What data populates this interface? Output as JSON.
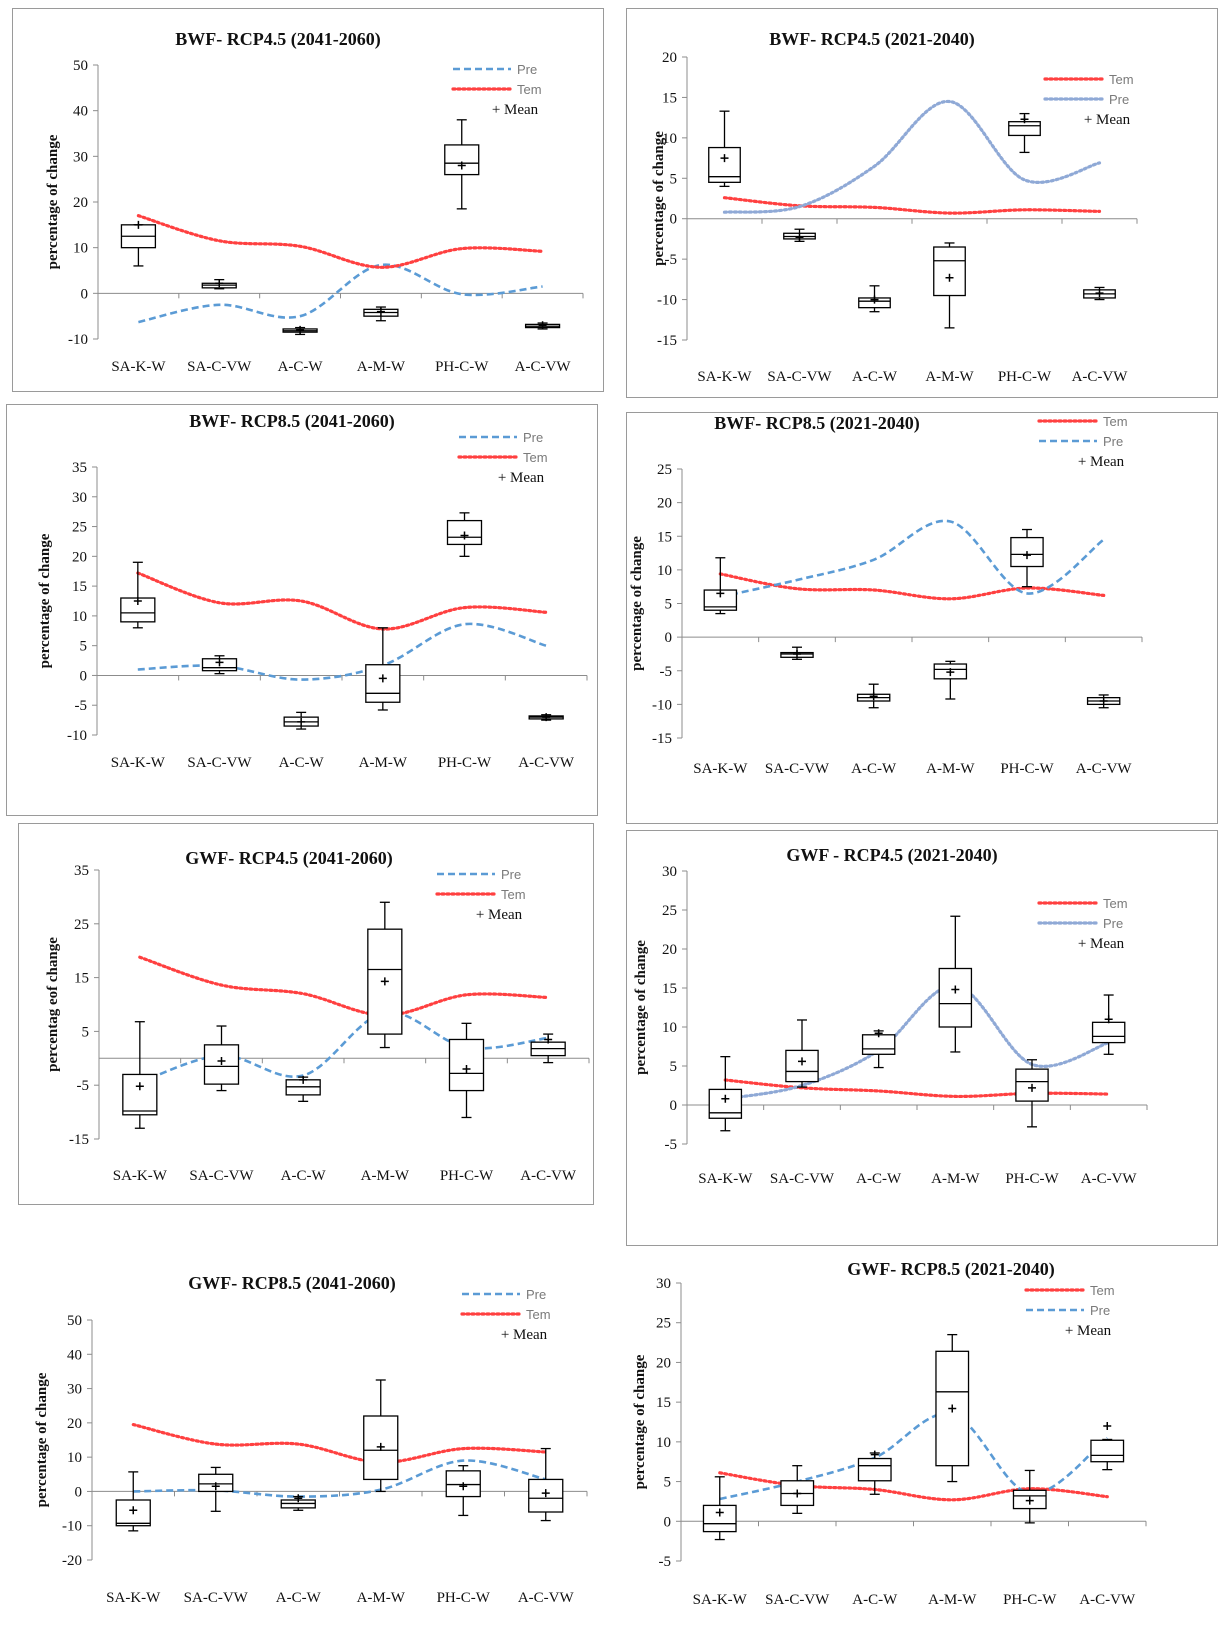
{
  "chart_data": [
    {
      "id": "p1",
      "type": "box",
      "title": "BWF- RCP4.5 (2041-2060)",
      "ylabel": "percentage of change",
      "ylim": [
        -10,
        50
      ],
      "yticks": [
        -10,
        0,
        10,
        20,
        30,
        40,
        50
      ],
      "categories": [
        "SA-K-W",
        "SA-C-VW",
        "A-C-W",
        "A-M-W",
        "PH-C-W",
        "A-C-VW"
      ],
      "boxes": [
        {
          "min": 6,
          "q1": 10,
          "median": 12.5,
          "q3": 15,
          "max": 15,
          "mean": 15
        },
        {
          "min": 1,
          "q1": 1.2,
          "median": 1.8,
          "q3": 2.2,
          "max": 3,
          "mean": 2.2
        },
        {
          "min": -9,
          "q1": -8.5,
          "median": -8.2,
          "q3": -7.8,
          "max": -7.5,
          "mean": -8
        },
        {
          "min": -6,
          "q1": -5,
          "median": -4.2,
          "q3": -3.5,
          "max": -3,
          "mean": -4
        },
        {
          "min": 18.5,
          "q1": 26,
          "median": 28.5,
          "q3": 32.5,
          "max": 38,
          "mean": 28
        },
        {
          "min": -7.8,
          "q1": -7.5,
          "median": -7.2,
          "q3": -6.8,
          "max": -6.5,
          "mean": -7
        }
      ],
      "lines": [
        {
          "name": "Pre",
          "style": "dashed",
          "color": "#5b9bd5",
          "values": [
            -6.3,
            -2.5,
            -5,
            6.2,
            -0.2,
            1.5
          ]
        },
        {
          "name": "Tem",
          "style": "dotted",
          "color": "#ff4040",
          "values": [
            17,
            11.5,
            10.3,
            5.7,
            9.8,
            9.2
          ]
        }
      ],
      "legend_order": [
        "Pre",
        "Tem",
        "Mean"
      ],
      "mean_label": "+ Mean"
    },
    {
      "id": "p2",
      "type": "box",
      "title": "BWF- RCP4.5 (2021-2040)",
      "ylabel": "percentage of change",
      "ylim": [
        -15,
        20
      ],
      "yticks": [
        -15,
        -10,
        -5,
        0,
        5,
        10,
        15,
        20
      ],
      "categories": [
        "SA-K-W",
        "SA-C-VW",
        "A-C-W",
        "A-M-W",
        "PH-C-W",
        "A-C-VW"
      ],
      "boxes": [
        {
          "min": 4,
          "q1": 4.5,
          "median": 5.2,
          "q3": 8.8,
          "max": 13.3,
          "mean": 7.5
        },
        {
          "min": -2.8,
          "q1": -2.5,
          "median": -2.2,
          "q3": -1.8,
          "max": -1.3,
          "mean": -2.3
        },
        {
          "min": -11.5,
          "q1": -11,
          "median": -10.2,
          "q3": -9.8,
          "max": -8.3,
          "mean": -10
        },
        {
          "min": -13.5,
          "q1": -9.5,
          "median": -5.2,
          "q3": -3.5,
          "max": -3,
          "mean": -7.3
        },
        {
          "min": 8.2,
          "q1": 10.3,
          "median": 11.5,
          "q3": 12,
          "max": 13,
          "mean": 12.3
        },
        {
          "min": -10,
          "q1": -9.8,
          "median": -9.3,
          "q3": -8.8,
          "max": -8.5,
          "mean": -9.2
        }
      ],
      "lines": [
        {
          "name": "Tem",
          "style": "dotted",
          "color": "#ff4040",
          "values": [
            2.6,
            1.6,
            1.4,
            0.7,
            1.1,
            0.9
          ]
        },
        {
          "name": "Pre",
          "style": "dotted",
          "color": "#8fa9d6",
          "values": [
            0.8,
            1.5,
            6.5,
            14.5,
            4.8,
            6.9
          ]
        }
      ],
      "legend_order": [
        "Tem",
        "Pre",
        "Mean"
      ],
      "mean_label": "+ Mean"
    },
    {
      "id": "p3",
      "type": "box",
      "title": "BWF- RCP8.5 (2041-2060)",
      "ylabel": "percentage of change",
      "ylim": [
        -10,
        35
      ],
      "yticks": [
        -10,
        -5,
        0,
        5,
        10,
        15,
        20,
        25,
        30,
        35
      ],
      "categories": [
        "SA-K-W",
        "SA-C-VW",
        "A-C-W",
        "A-M-W",
        "PH-C-W",
        "A-C-VW"
      ],
      "boxes": [
        {
          "min": 8,
          "q1": 9,
          "median": 10.5,
          "q3": 13,
          "max": 19,
          "mean": 12.5
        },
        {
          "min": 0.3,
          "q1": 0.8,
          "median": 1.3,
          "q3": 2.8,
          "max": 3.3,
          "mean": 2.2
        },
        {
          "min": -9,
          "q1": -8.5,
          "median": -7.8,
          "q3": -7,
          "max": -6.2,
          "mean": -7.8
        },
        {
          "min": -5.8,
          "q1": -4.5,
          "median": -3,
          "q3": 1.8,
          "max": 8,
          "mean": -0.5
        },
        {
          "min": 20,
          "q1": 22,
          "median": 23.2,
          "q3": 26,
          "max": 27.3,
          "mean": 23.5
        },
        {
          "min": -7.5,
          "q1": -7.3,
          "median": -7,
          "q3": -6.8,
          "max": -6.6,
          "mean": -7
        }
      ],
      "lines": [
        {
          "name": "Pre",
          "style": "dashed",
          "color": "#5b9bd5",
          "values": [
            1,
            1.6,
            -0.7,
            1.7,
            8.6,
            5
          ]
        },
        {
          "name": "Tem",
          "style": "dotted",
          "color": "#ff4040",
          "values": [
            17.2,
            12.2,
            12.5,
            7.8,
            11.4,
            10.6
          ]
        }
      ],
      "legend_order": [
        "Pre",
        "Tem",
        "Mean"
      ],
      "mean_label": "+ Mean"
    },
    {
      "id": "p4",
      "type": "box",
      "title": "BWF- RCP8.5 (2021-2040)",
      "ylabel": "percentage of change",
      "ylim": [
        -15,
        25
      ],
      "yticks": [
        -15,
        -10,
        -5,
        0,
        5,
        10,
        15,
        20,
        25
      ],
      "categories": [
        "SA-K-W",
        "SA-C-VW",
        "A-C-W",
        "A-M-W",
        "PH-C-W",
        "A-C-VW"
      ],
      "boxes": [
        {
          "min": 3.5,
          "q1": 4,
          "median": 4.5,
          "q3": 7,
          "max": 11.8,
          "mean": 6.5
        },
        {
          "min": -3.3,
          "q1": -3,
          "median": -2.5,
          "q3": -2.3,
          "max": -1.5,
          "mean": -2.5
        },
        {
          "min": -10.5,
          "q1": -9.5,
          "median": -9,
          "q3": -8.5,
          "max": -7,
          "mean": -8.8
        },
        {
          "min": -9.2,
          "q1": -6.2,
          "median": -4.8,
          "q3": -4,
          "max": -3.6,
          "mean": -5.2
        },
        {
          "min": 7.5,
          "q1": 10.5,
          "median": 12.3,
          "q3": 14.8,
          "max": 16,
          "mean": 12.2
        },
        {
          "min": -10.5,
          "q1": -10,
          "median": -9.5,
          "q3": -9,
          "max": -8.6,
          "mean": -9.5
        }
      ],
      "lines": [
        {
          "name": "Tem",
          "style": "dotted",
          "color": "#ff4040",
          "values": [
            9.4,
            7.2,
            7,
            5.7,
            7.3,
            6.2
          ]
        },
        {
          "name": "Pre",
          "style": "dashed",
          "color": "#5b9bd5",
          "values": [
            6,
            8.5,
            11.5,
            17.2,
            6.5,
            14.5
          ]
        }
      ],
      "legend_order": [
        "Tem",
        "Pre",
        "Mean"
      ],
      "mean_label": "+ Mean"
    },
    {
      "id": "p5",
      "type": "box",
      "title": "GWF- RCP4.5 (2041-2060)",
      "ylabel": "percentag eof change",
      "ylim": [
        -15,
        35
      ],
      "yticks": [
        -15,
        -5,
        5,
        15,
        25,
        35
      ],
      "categories": [
        "SA-K-W",
        "SA-C-VW",
        "A-C-W",
        "A-M-W",
        "PH-C-W",
        "A-C-VW"
      ],
      "boxes": [
        {
          "min": -13,
          "q1": -10.5,
          "median": -9.8,
          "q3": -3,
          "max": 6.8,
          "mean": -5.2
        },
        {
          "min": -6,
          "q1": -4.8,
          "median": -1.5,
          "q3": 2.5,
          "max": 6,
          "mean": -0.5
        },
        {
          "min": -8,
          "q1": -6.8,
          "median": -5.3,
          "q3": -4,
          "max": -3.5,
          "mean": -4
        },
        {
          "min": 2,
          "q1": 4.5,
          "median": 16.5,
          "q3": 24,
          "max": 29,
          "mean": 14.3
        },
        {
          "min": -11,
          "q1": -6,
          "median": -2.8,
          "q3": 3.5,
          "max": 6.5,
          "mean": -2
        },
        {
          "min": -0.8,
          "q1": 0.5,
          "median": 1.8,
          "q3": 3,
          "max": 4.5,
          "mean": 3.5
        }
      ],
      "lines": [
        {
          "name": "Pre",
          "style": "dashed",
          "color": "#5b9bd5",
          "values": [
            -4.5,
            0.5,
            -3.2,
            8.5,
            2,
            3.8
          ]
        },
        {
          "name": "Tem",
          "style": "dotted",
          "color": "#ff4040",
          "values": [
            18.8,
            13.6,
            12,
            8,
            11.8,
            11.3
          ]
        }
      ],
      "legend_order": [
        "Pre",
        "Tem",
        "Mean"
      ],
      "mean_label": "+ Mean"
    },
    {
      "id": "p6",
      "type": "box",
      "title": "GWF - RCP4.5 (2021-2040)",
      "ylabel": "percentage of change",
      "ylim": [
        -5,
        30
      ],
      "yticks": [
        -5,
        0,
        5,
        10,
        15,
        20,
        25,
        30
      ],
      "categories": [
        "SA-K-W",
        "SA-C-VW",
        "A-C-W",
        "A-M-W",
        "PH-C-W",
        "A-C-VW"
      ],
      "boxes": [
        {
          "min": -3.3,
          "q1": -1.7,
          "median": -1,
          "q3": 2,
          "max": 6.2,
          "mean": 0.8
        },
        {
          "min": 2.3,
          "q1": 3,
          "median": 4.3,
          "q3": 7,
          "max": 10.9,
          "mean": 5.6
        },
        {
          "min": 4.8,
          "q1": 6.5,
          "median": 7.2,
          "q3": 9,
          "max": 9.5,
          "mean": 9.2
        },
        {
          "min": 6.8,
          "q1": 10,
          "median": 13,
          "q3": 17.5,
          "max": 24.2,
          "mean": 14.8
        },
        {
          "min": -2.8,
          "q1": 0.5,
          "median": 3,
          "q3": 4.6,
          "max": 5.8,
          "mean": 2.2
        },
        {
          "min": 6.5,
          "q1": 8,
          "median": 8.8,
          "q3": 10.6,
          "max": 14.1,
          "mean": 11
        }
      ],
      "lines": [
        {
          "name": "Tem",
          "style": "dotted",
          "color": "#ff4040",
          "values": [
            3.2,
            2.2,
            1.8,
            1.1,
            1.5,
            1.4
          ]
        },
        {
          "name": "Pre",
          "style": "dotted",
          "color": "#8fa9d6",
          "values": [
            0.8,
            2.5,
            7,
            15.3,
            5.2,
            8
          ]
        }
      ],
      "legend_order": [
        "Tem",
        "Pre",
        "Mean"
      ],
      "mean_label": "+ Mean"
    },
    {
      "id": "p7",
      "type": "box",
      "title": "GWF- RCP8.5 (2041-2060)",
      "ylabel": "percentage of change",
      "ylim": [
        -20,
        50
      ],
      "yticks": [
        -20,
        -10,
        0,
        10,
        20,
        30,
        40,
        50
      ],
      "categories": [
        "SA-K-W",
        "SA-C-VW",
        "A-C-W",
        "A-M-W",
        "PH-C-W",
        "A-C-VW"
      ],
      "boxes": [
        {
          "min": -11.5,
          "q1": -10,
          "median": -9.3,
          "q3": -2.5,
          "max": 5.7,
          "mean": -5.5
        },
        {
          "min": -5.8,
          "q1": 0,
          "median": 2.2,
          "q3": 5,
          "max": 7,
          "mean": 1.5
        },
        {
          "min": -5.5,
          "q1": -4.8,
          "median": -3.5,
          "q3": -2.5,
          "max": -1.5,
          "mean": -2
        },
        {
          "min": 0,
          "q1": 3.5,
          "median": 12,
          "q3": 22,
          "max": 32.5,
          "mean": 13
        },
        {
          "min": -7,
          "q1": -1.5,
          "median": 2,
          "q3": 6,
          "max": 7.5,
          "mean": 1.5
        },
        {
          "min": -8.5,
          "q1": -6,
          "median": -2,
          "q3": 3.5,
          "max": 12.5,
          "mean": -0.5
        }
      ],
      "lines": [
        {
          "name": "Pre",
          "style": "dashed",
          "color": "#5b9bd5",
          "values": [
            0,
            0.3,
            -1.5,
            0.5,
            9,
            3.5
          ]
        },
        {
          "name": "Tem",
          "style": "dotted",
          "color": "#ff4040",
          "values": [
            19.5,
            13.8,
            13.8,
            8.5,
            12.5,
            11.5
          ]
        }
      ],
      "legend_order": [
        "Pre",
        "Tem",
        "Mean"
      ],
      "mean_label": "+ Mean"
    },
    {
      "id": "p8",
      "type": "box",
      "title": "GWF- RCP8.5 (2021-2040)",
      "ylabel": "percentage of change",
      "ylim": [
        -5,
        30
      ],
      "yticks": [
        -5,
        0,
        5,
        10,
        15,
        20,
        25,
        30
      ],
      "categories": [
        "SA-K-W",
        "SA-C-VW",
        "A-C-W",
        "A-M-W",
        "PH-C-W",
        "A-C-VW"
      ],
      "boxes": [
        {
          "min": -2.3,
          "q1": -1.3,
          "median": -0.3,
          "q3": 2,
          "max": 5.6,
          "mean": 1.1
        },
        {
          "min": 1,
          "q1": 2,
          "median": 3.5,
          "q3": 5.1,
          "max": 7,
          "mean": 3.5
        },
        {
          "min": 3.4,
          "q1": 5.1,
          "median": 7,
          "q3": 7.9,
          "max": 8.6,
          "mean": 8.4
        },
        {
          "min": 5,
          "q1": 7,
          "median": 16.3,
          "q3": 21.4,
          "max": 23.5,
          "mean": 14.2
        },
        {
          "min": -0.2,
          "q1": 1.6,
          "median": 3.2,
          "q3": 3.9,
          "max": 6.4,
          "mean": 2.6
        },
        {
          "min": 6.5,
          "q1": 7.5,
          "median": 8.3,
          "q3": 10.2,
          "max": 10.3,
          "mean": 12
        }
      ],
      "lines": [
        {
          "name": "Tem",
          "style": "dotted",
          "color": "#ff4040",
          "values": [
            6.1,
            4.5,
            4,
            2.7,
            4.1,
            3.1
          ]
        },
        {
          "name": "Pre",
          "style": "dashed",
          "color": "#5b9bd5",
          "values": [
            2.8,
            5,
            8,
            13.5,
            3.5,
            10.5
          ]
        }
      ],
      "legend_order": [
        "Tem",
        "Pre",
        "Mean"
      ],
      "mean_label": "+ Mean"
    }
  ]
}
